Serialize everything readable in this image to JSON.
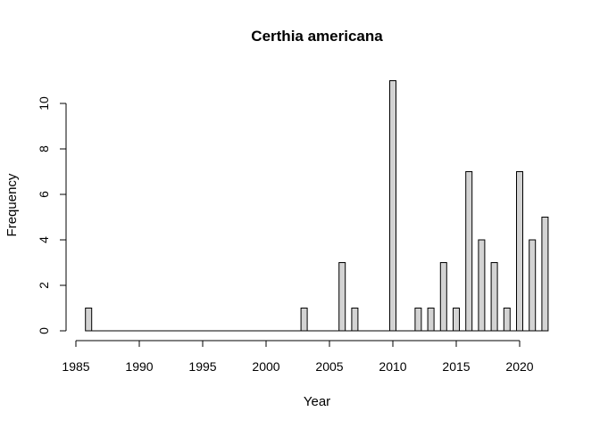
{
  "chart_data": {
    "type": "bar",
    "title": "Certhia americana",
    "xlabel": "Year",
    "ylabel": "Frequency",
    "x": [
      1986,
      1987,
      1988,
      1989,
      1990,
      1991,
      1992,
      1993,
      1994,
      1995,
      1996,
      1997,
      1998,
      1999,
      2000,
      2001,
      2002,
      2003,
      2004,
      2005,
      2006,
      2007,
      2008,
      2009,
      2010,
      2011,
      2012,
      2013,
      2014,
      2015,
      2016,
      2017,
      2018,
      2019,
      2020,
      2021,
      2022
    ],
    "values": [
      1,
      0,
      0,
      0,
      0,
      0,
      0,
      0,
      0,
      0,
      0,
      0,
      0,
      0,
      0,
      0,
      0,
      1,
      0,
      0,
      3,
      1,
      0,
      0,
      11,
      0,
      1,
      1,
      3,
      1,
      7,
      4,
      3,
      1,
      7,
      4,
      5
    ],
    "xlim": [
      1985,
      2022
    ],
    "ylim": [
      0,
      11
    ],
    "xticks": [
      "1985",
      "1990",
      "1995",
      "2000",
      "2005",
      "2010",
      "2015",
      "2020"
    ],
    "yticks": [
      "0",
      "2",
      "4",
      "6",
      "8",
      "10"
    ],
    "grid": false,
    "legend": "none",
    "bar_color": "#d3d3d3"
  }
}
